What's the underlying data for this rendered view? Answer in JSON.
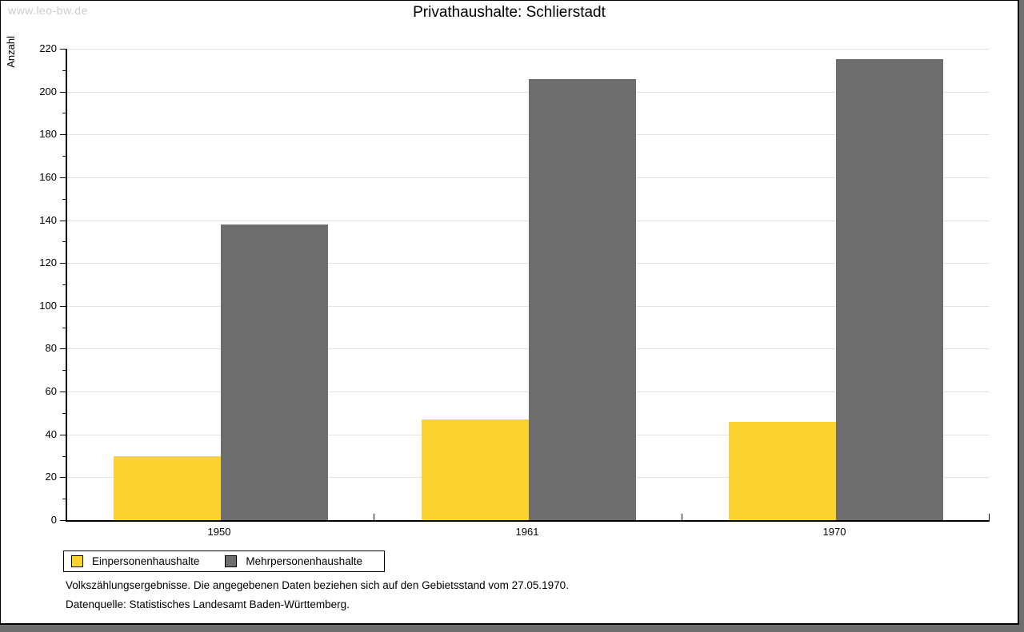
{
  "watermark": "www.leo-bw.de",
  "chart_data": {
    "type": "bar",
    "title": "Privathaushalte: Schlierstadt",
    "ylabel": "Anzahl",
    "xlabel": "",
    "categories": [
      "1950",
      "1961",
      "1970"
    ],
    "series": [
      {
        "name": "Einpersonenhaushalte",
        "color": "#FBD32E",
        "values": [
          30,
          47,
          46
        ]
      },
      {
        "name": "Mehrpersonenhaushalte",
        "color": "#6E6E6E",
        "values": [
          138,
          206,
          215
        ]
      }
    ],
    "ylim": [
      0,
      220
    ],
    "y_major_step": 20,
    "y_minor_step": 10,
    "grid": true,
    "legend_position": "bottom-left"
  },
  "footnotes": [
    "Volkszählungsergebnisse. Die angegebenen Daten beziehen sich auf den Gebietsstand vom 27.05.1970.",
    "Datenquelle: Statistisches Landesamt Baden-Württemberg."
  ],
  "colors": {
    "grid": "#E3E3E3",
    "axis": "#000000",
    "watermark": "#CDCDCD",
    "frame_shadow": "#6F6F6F",
    "background": "#FFFFFF"
  }
}
